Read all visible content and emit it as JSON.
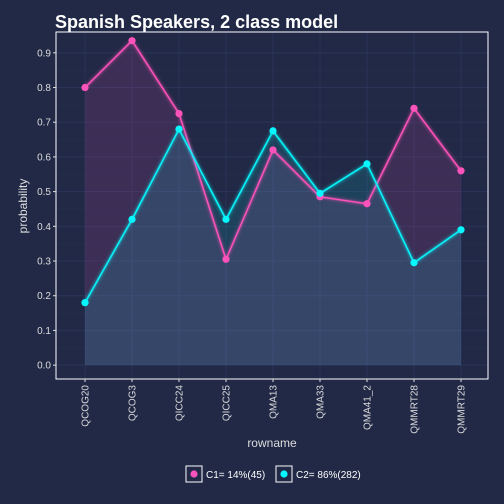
{
  "chart_data": {
    "type": "line",
    "title": "Spanish Speakers, 2 class model",
    "xlabel": "rowname",
    "ylabel": "probability",
    "categories": [
      "QCOG20",
      "QCOG3",
      "QICC24",
      "QICC25",
      "QMA13",
      "QMA33",
      "QMA41_2",
      "QMMRT28",
      "QMMRT29"
    ],
    "ylim": [
      -0.04,
      0.96
    ],
    "yticks": [
      "0.0",
      "0.1",
      "0.2",
      "0.3",
      "0.4",
      "0.5",
      "0.6",
      "0.7",
      "0.8",
      "0.9"
    ],
    "grid": true,
    "legend_position": "bottom",
    "series": [
      {
        "name": "C1= 14%(45)",
        "color": "#FE53BB",
        "values": [
          0.8,
          0.935,
          0.725,
          0.305,
          0.62,
          0.485,
          0.465,
          0.74,
          0.56
        ]
      },
      {
        "name": "C2= 86%(282)",
        "color": "#08F7FE",
        "values": [
          0.18,
          0.42,
          0.68,
          0.42,
          0.675,
          0.495,
          0.58,
          0.295,
          0.39
        ]
      }
    ]
  },
  "colors": {
    "background": "#212946",
    "panel_border": "#ffffff",
    "grid": "#2A3459",
    "text": "#dddddd"
  }
}
